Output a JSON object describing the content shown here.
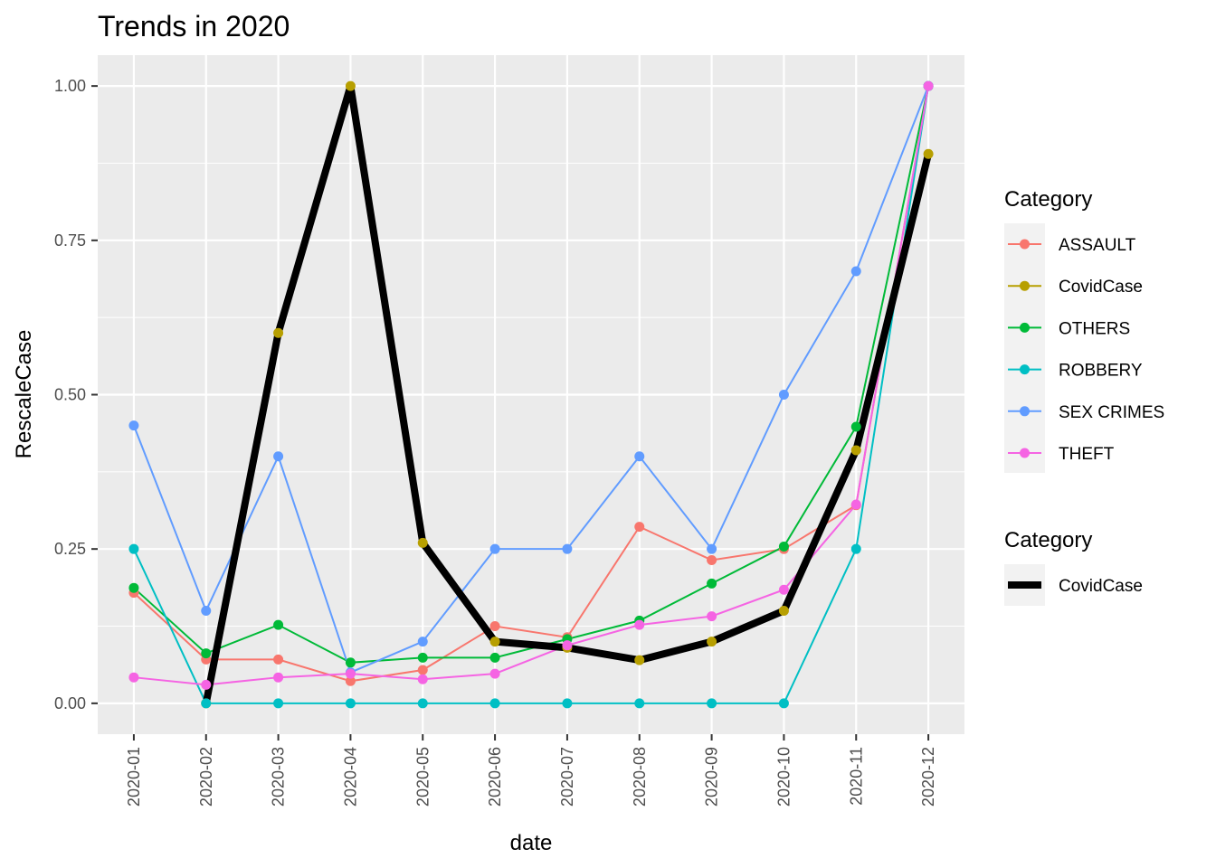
{
  "chart_data": {
    "type": "line",
    "title": "Trends in 2020",
    "xlabel": "date",
    "ylabel": "RescaleCase",
    "ylim": [
      -0.05,
      1.05
    ],
    "yticks": [
      "0.00",
      "0.25",
      "0.50",
      "0.75",
      "1.00"
    ],
    "categories": [
      "2020-01",
      "2020-02",
      "2020-03",
      "2020-04",
      "2020-05",
      "2020-06",
      "2020-07",
      "2020-08",
      "2020-09",
      "2020-10",
      "2020-11",
      "2020-12"
    ],
    "grid": true,
    "legend_placement": "right",
    "series": [
      {
        "name": "ASSAULT",
        "color": "#F8766D",
        "values": [
          0.179,
          0.071,
          0.071,
          0.036,
          0.054,
          0.125,
          0.107,
          0.286,
          0.232,
          0.25,
          0.321,
          1.0
        ]
      },
      {
        "name": "CovidCase",
        "color": "#B79F00",
        "values": [
          null,
          0.0,
          0.6,
          1.0,
          0.26,
          0.1,
          0.09,
          0.07,
          0.1,
          0.15,
          0.41,
          0.89
        ]
      },
      {
        "name": "OTHERS",
        "color": "#00BA38",
        "values": [
          0.187,
          0.081,
          0.127,
          0.066,
          0.074,
          0.074,
          0.104,
          0.134,
          0.194,
          0.254,
          0.448,
          1.0
        ]
      },
      {
        "name": "ROBBERY",
        "color": "#00BFC4",
        "values": [
          0.25,
          0.0,
          0.0,
          0.0,
          0.0,
          0.0,
          0.0,
          0.0,
          0.0,
          0.0,
          0.25,
          1.0
        ]
      },
      {
        "name": "SEX CRIMES",
        "color": "#619CFF",
        "values": [
          0.45,
          0.15,
          0.4,
          0.05,
          0.1,
          0.25,
          0.25,
          0.4,
          0.25,
          0.5,
          0.7,
          1.0
        ]
      },
      {
        "name": "THEFT",
        "color": "#F564E3",
        "values": [
          0.042,
          0.03,
          0.042,
          0.048,
          0.039,
          0.048,
          0.094,
          0.127,
          0.141,
          0.184,
          0.322,
          1.0
        ]
      }
    ],
    "highlight": {
      "name": "CovidCase",
      "color": "#000000",
      "values": [
        null,
        0.0,
        0.6,
        1.0,
        0.26,
        0.1,
        0.09,
        0.07,
        0.1,
        0.15,
        0.41,
        0.89
      ]
    },
    "legends": [
      {
        "title": "Category",
        "entries": [
          "ASSAULT",
          "CovidCase",
          "OTHERS",
          "ROBBERY",
          "SEX CRIMES",
          "THEFT"
        ]
      },
      {
        "title": "Category",
        "entries": [
          "CovidCase"
        ]
      }
    ]
  }
}
